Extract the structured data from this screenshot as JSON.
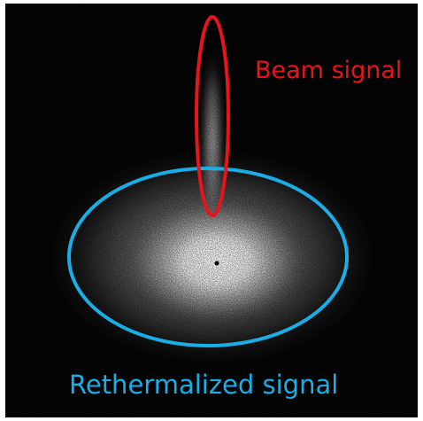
{
  "labels": {
    "beam": "Beam signal",
    "rethermalized": "Rethermalized signal"
  }
}
